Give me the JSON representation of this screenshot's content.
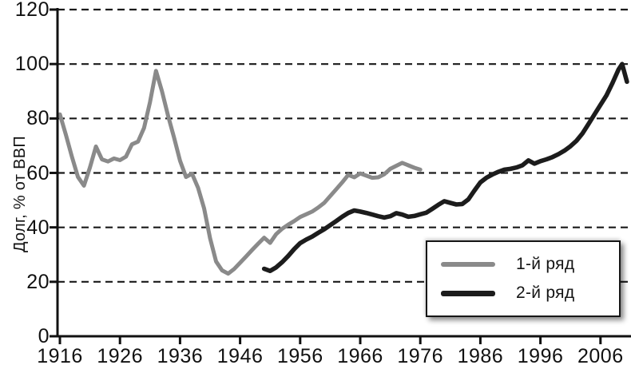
{
  "chart_data": {
    "type": "line",
    "title": "",
    "xlabel": "",
    "ylabel": "Долг, % от ВВП",
    "ylim": [
      0,
      120
    ],
    "yticks": [
      0,
      20,
      40,
      60,
      80,
      100,
      120
    ],
    "xticks": [
      1916,
      1926,
      1936,
      1946,
      1956,
      1966,
      1976,
      1986,
      1996,
      2006
    ],
    "xlim": [
      1916,
      2011
    ],
    "grid": "horizontal-dashed",
    "legend_position": "inside-bottom-right",
    "colors": {
      "axis": "#111111",
      "grid": "#1a1a1a",
      "series1": "#8a8a8a",
      "series2": "#1c1c1c",
      "background": "#ffffff"
    },
    "series": [
      {
        "name": "1-й ряд",
        "color": "#8a8a8a",
        "points": [
          [
            1916,
            81.5
          ],
          [
            1917,
            74
          ],
          [
            1918,
            66
          ],
          [
            1919,
            58.5
          ],
          [
            1920,
            55.3
          ],
          [
            1921,
            62
          ],
          [
            1922,
            69.7
          ],
          [
            1923,
            65
          ],
          [
            1924,
            64.2
          ],
          [
            1925,
            65.3
          ],
          [
            1926,
            64.7
          ],
          [
            1927,
            66
          ],
          [
            1928,
            70.5
          ],
          [
            1929,
            71.5
          ],
          [
            1930,
            76.5
          ],
          [
            1931,
            86
          ],
          [
            1932,
            97.5
          ],
          [
            1933,
            90
          ],
          [
            1934,
            81
          ],
          [
            1935,
            73
          ],
          [
            1936,
            64.5
          ],
          [
            1937,
            58.5
          ],
          [
            1938,
            59.7
          ],
          [
            1939,
            54.5
          ],
          [
            1940,
            47
          ],
          [
            1941,
            36
          ],
          [
            1942,
            27.5
          ],
          [
            1943,
            24.2
          ],
          [
            1944,
            23
          ],
          [
            1945,
            24.7
          ],
          [
            1946,
            27
          ],
          [
            1947,
            29.3
          ],
          [
            1948,
            31.7
          ],
          [
            1949,
            34
          ],
          [
            1950,
            36.2
          ],
          [
            1951,
            34.3
          ],
          [
            1952,
            37.5
          ],
          [
            1953,
            39.5
          ],
          [
            1954,
            41
          ],
          [
            1955,
            42.3
          ],
          [
            1956,
            43.8
          ],
          [
            1957,
            44.8
          ],
          [
            1958,
            45.8
          ],
          [
            1959,
            47.3
          ],
          [
            1960,
            49
          ],
          [
            1961,
            51.5
          ],
          [
            1962,
            54
          ],
          [
            1963,
            56.5
          ],
          [
            1964,
            59.3
          ],
          [
            1965,
            58.4
          ],
          [
            1966,
            59.8
          ],
          [
            1967,
            59
          ],
          [
            1968,
            58.2
          ],
          [
            1969,
            58.4
          ],
          [
            1970,
            59.5
          ],
          [
            1971,
            61.5
          ],
          [
            1972,
            62.6
          ],
          [
            1973,
            63.7
          ],
          [
            1974,
            62.8
          ],
          [
            1975,
            61.9
          ],
          [
            1976,
            61.2
          ]
        ]
      },
      {
        "name": "2-й ряд",
        "color": "#1c1c1c",
        "points": [
          [
            1950,
            24.8
          ],
          [
            1951,
            24
          ],
          [
            1952,
            25.3
          ],
          [
            1953,
            27.2
          ],
          [
            1954,
            29.5
          ],
          [
            1955,
            32
          ],
          [
            1956,
            34.2
          ],
          [
            1957,
            35.5
          ],
          [
            1958,
            36.6
          ],
          [
            1959,
            38
          ],
          [
            1960,
            39.3
          ],
          [
            1961,
            40.8
          ],
          [
            1962,
            42.3
          ],
          [
            1963,
            43.9
          ],
          [
            1964,
            45.3
          ],
          [
            1965,
            46.2
          ],
          [
            1966,
            45.8
          ],
          [
            1967,
            45.3
          ],
          [
            1968,
            44.7
          ],
          [
            1969,
            44.1
          ],
          [
            1970,
            43.6
          ],
          [
            1971,
            44.1
          ],
          [
            1972,
            45.2
          ],
          [
            1973,
            44.7
          ],
          [
            1974,
            43.9
          ],
          [
            1975,
            44.2
          ],
          [
            1976,
            44.8
          ],
          [
            1977,
            45.4
          ],
          [
            1978,
            46.8
          ],
          [
            1979,
            48.3
          ],
          [
            1980,
            49.6
          ],
          [
            1981,
            49
          ],
          [
            1982,
            48.4
          ],
          [
            1983,
            48.6
          ],
          [
            1984,
            50.3
          ],
          [
            1985,
            53.5
          ],
          [
            1986,
            56.5
          ],
          [
            1987,
            58.2
          ],
          [
            1988,
            59.4
          ],
          [
            1989,
            60.4
          ],
          [
            1990,
            61.2
          ],
          [
            1991,
            61.5
          ],
          [
            1992,
            62
          ],
          [
            1993,
            62.8
          ],
          [
            1994,
            64.6
          ],
          [
            1995,
            63.4
          ],
          [
            1996,
            64.3
          ],
          [
            1997,
            65
          ],
          [
            1998,
            65.8
          ],
          [
            1999,
            66.9
          ],
          [
            2000,
            68.2
          ],
          [
            2001,
            69.8
          ],
          [
            2002,
            71.8
          ],
          [
            2003,
            74.5
          ],
          [
            2004,
            78
          ],
          [
            2005,
            81.5
          ],
          [
            2006,
            85
          ],
          [
            2007,
            88.5
          ],
          [
            2008,
            93
          ],
          [
            2009,
            98
          ],
          [
            2009.6,
            100
          ],
          [
            2010.4,
            93.5
          ]
        ]
      }
    ]
  },
  "legend": {
    "item1": "1-й ряд",
    "item2": "2-й ряд"
  }
}
